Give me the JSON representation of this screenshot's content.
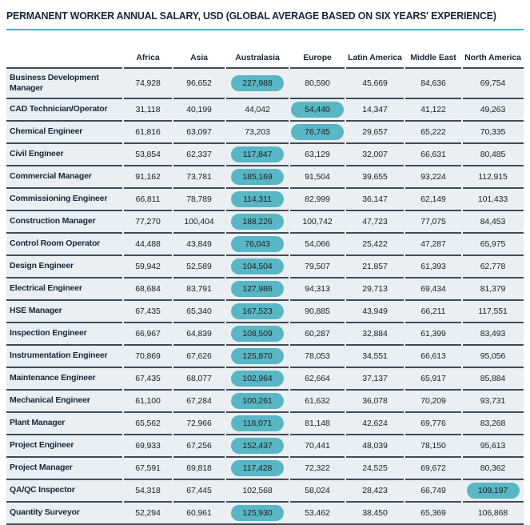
{
  "colors": {
    "title_text": "#16293b",
    "accent_rule": "#3fb0d6",
    "row_background": "#e9eff3",
    "separator_line": "#414c56",
    "highlight_pill": "#59b6c4"
  },
  "chart_data": {
    "type": "table",
    "title": "PERMANENT WORKER ANNUAL SALARY, USD (GLOBAL AVERAGE BASED ON SIX YEARS' EXPERIENCE)",
    "columns": [
      "Africa",
      "Asia",
      "Australasia",
      "Europe",
      "Latin America",
      "Middle East",
      "North America"
    ],
    "highlight_note_color": "#59b6c4",
    "rows": [
      {
        "label": "Business Development Manager",
        "values": [
          74928,
          96652,
          227988,
          80590,
          45669,
          84636,
          69754
        ],
        "highlight_index": 2
      },
      {
        "label": "CAD Technician/Operator",
        "values": [
          31118,
          40199,
          44042,
          54440,
          14347,
          41122,
          49263
        ],
        "highlight_index": 3
      },
      {
        "label": "Chemical Engineer",
        "values": [
          61816,
          63097,
          73203,
          76745,
          29657,
          65222,
          70335
        ],
        "highlight_index": 3
      },
      {
        "label": "Civil Engineer",
        "values": [
          53854,
          62337,
          117847,
          63129,
          32007,
          66631,
          80485
        ],
        "highlight_index": 2
      },
      {
        "label": "Commercial Manager",
        "values": [
          91162,
          73781,
          185169,
          91504,
          39655,
          93224,
          112915
        ],
        "highlight_index": 2
      },
      {
        "label": "Commissioning Engineer",
        "values": [
          66811,
          78789,
          114311,
          82999,
          36147,
          62149,
          101433
        ],
        "highlight_index": 2
      },
      {
        "label": "Construction Manager",
        "values": [
          77270,
          100404,
          188226,
          100742,
          47723,
          77075,
          84453
        ],
        "highlight_index": 2
      },
      {
        "label": "Control Room Operator",
        "values": [
          44488,
          43849,
          76043,
          54066,
          25422,
          47287,
          65975
        ],
        "highlight_index": 2
      },
      {
        "label": "Design Engineer",
        "values": [
          59942,
          52589,
          104504,
          79507,
          21857,
          61393,
          62778
        ],
        "highlight_index": 2
      },
      {
        "label": "Electrical Engineer",
        "values": [
          68684,
          83791,
          127986,
          94313,
          29713,
          69434,
          81379
        ],
        "highlight_index": 2
      },
      {
        "label": "HSE Manager",
        "values": [
          67435,
          65340,
          167523,
          90885,
          43949,
          66211,
          117551
        ],
        "highlight_index": 2
      },
      {
        "label": "Inspection Engineer",
        "values": [
          66967,
          64839,
          108509,
          60287,
          32884,
          61399,
          83493
        ],
        "highlight_index": 2
      },
      {
        "label": "Instrumentation Engineer",
        "values": [
          70869,
          67626,
          125870,
          78053,
          34551,
          66613,
          95056
        ],
        "highlight_index": 2
      },
      {
        "label": "Maintenance Engineer",
        "values": [
          67435,
          68077,
          102964,
          62664,
          37137,
          65917,
          85884
        ],
        "highlight_index": 2
      },
      {
        "label": "Mechanical Engineer",
        "values": [
          61100,
          67284,
          100261,
          61632,
          36078,
          70209,
          93731
        ],
        "highlight_index": 2
      },
      {
        "label": "Plant Manager",
        "values": [
          65562,
          72966,
          118071,
          81148,
          42624,
          69776,
          83268
        ],
        "highlight_index": 2
      },
      {
        "label": "Project Engineer",
        "values": [
          69933,
          67256,
          152437,
          70441,
          48039,
          78150,
          95613
        ],
        "highlight_index": 2
      },
      {
        "label": "Project Manager",
        "values": [
          67591,
          69818,
          117428,
          72322,
          24525,
          69672,
          80362
        ],
        "highlight_index": 2
      },
      {
        "label": "QA/QC Inspector",
        "values": [
          54318,
          67445,
          102568,
          58024,
          28423,
          66749,
          109197
        ],
        "highlight_index": 6
      },
      {
        "label": "Quantity Surveyor",
        "values": [
          52294,
          60961,
          125930,
          53462,
          38450,
          65369,
          106868
        ],
        "highlight_index": 2
      }
    ]
  }
}
